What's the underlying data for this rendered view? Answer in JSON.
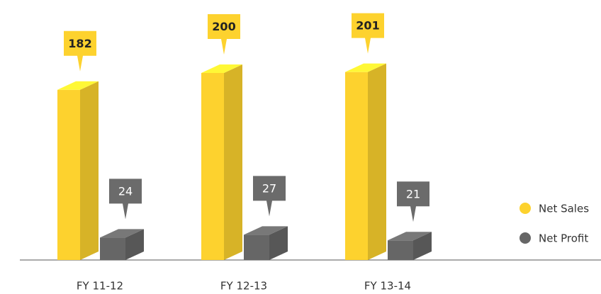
{
  "chart_data": {
    "type": "bar3d",
    "categories": [
      "FY 11-12",
      "FY 12-13",
      "FY 13-14"
    ],
    "series": [
      {
        "name": "Net Sales",
        "color": "#fdd22e",
        "values": [
          182,
          200,
          201
        ]
      },
      {
        "name": "Net Profit",
        "color": "#666666",
        "values": [
          24,
          27,
          21
        ]
      }
    ]
  }
}
